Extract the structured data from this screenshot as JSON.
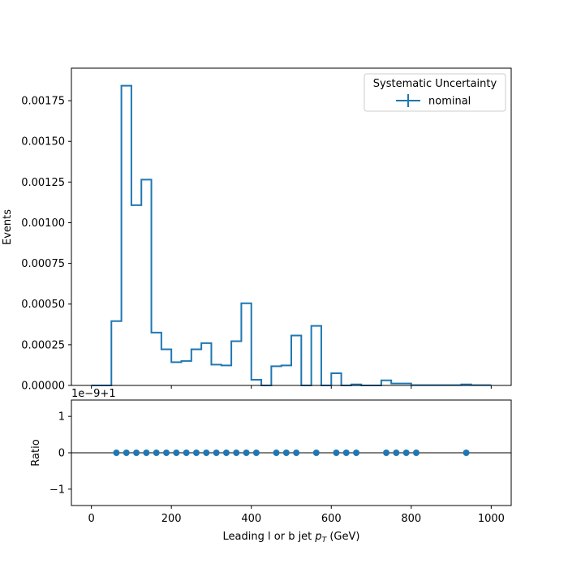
{
  "chart_data": [
    {
      "type": "step",
      "panel": "main",
      "ylabel": "Events",
      "xlim": [
        -50,
        1050
      ],
      "ylim": [
        0,
        0.00195
      ],
      "yticks": [
        "0.00000",
        "0.00025",
        "0.00050",
        "0.00075",
        "0.00100",
        "0.00125",
        "0.00150",
        "0.00175"
      ],
      "legend": {
        "title": "Systematic Uncertainty",
        "entries": [
          "nominal"
        ],
        "placement": "top-right"
      },
      "series": [
        {
          "name": "nominal",
          "color": "#1f77b4",
          "bin_edges": [
            0,
            25,
            50,
            75,
            100,
            125,
            150,
            175,
            200,
            225,
            250,
            275,
            300,
            325,
            350,
            375,
            400,
            425,
            450,
            475,
            500,
            525,
            550,
            575,
            600,
            625,
            650,
            675,
            700,
            725,
            750,
            775,
            800,
            825,
            850,
            875,
            900,
            925,
            950,
            975,
            1000
          ],
          "values": [
            0,
            0,
            0.000395,
            0.001842,
            0.001108,
            0.001265,
            0.000325,
            0.000222,
            0.000143,
            0.00015,
            0.000222,
            0.00026,
            0.000128,
            0.000123,
            0.000272,
            0.000505,
            3.5e-05,
            0,
            0.000118,
            0.000123,
            0.000307,
            0,
            0.000366,
            0,
            7.5e-05,
            0,
            6e-06,
            0,
            0,
            3.1e-05,
            1.2e-05,
            1.2e-05,
            2e-06,
            2e-06,
            2e-06,
            2e-06,
            2e-06,
            6e-06,
            2e-06,
            2e-06
          ]
        }
      ]
    },
    {
      "type": "scatter",
      "panel": "ratio",
      "ylabel": "Ratio",
      "xlabel_prefix": "Leading l or b jet ",
      "xlabel_math": "p",
      "xlabel_sub": "T",
      "xlabel_suffix": " (GeV)",
      "offset_text": "1e−9+1",
      "xlim": [
        -50,
        1050
      ],
      "ylim": [
        -1.45,
        1.45
      ],
      "xticks": [
        "0",
        "200",
        "400",
        "600",
        "800",
        "1000"
      ],
      "yticks": [
        "−1",
        "0",
        "1"
      ],
      "reference_line": 0,
      "series": [
        {
          "name": "nominal",
          "color": "#1f77b4",
          "x": [
            62.5,
            87.5,
            112.5,
            137.5,
            162.5,
            187.5,
            212.5,
            237.5,
            262.5,
            287.5,
            312.5,
            337.5,
            362.5,
            387.5,
            412.5,
            462.5,
            487.5,
            512.5,
            562.5,
            612.5,
            637.5,
            662.5,
            737.5,
            762.5,
            787.5,
            812.5,
            937.5
          ],
          "y": [
            0,
            0,
            0,
            0,
            0,
            0,
            0,
            0,
            0,
            0,
            0,
            0,
            0,
            0,
            0,
            0,
            0,
            0,
            0,
            0,
            0,
            0,
            0,
            0,
            0,
            0,
            0
          ]
        }
      ]
    }
  ]
}
